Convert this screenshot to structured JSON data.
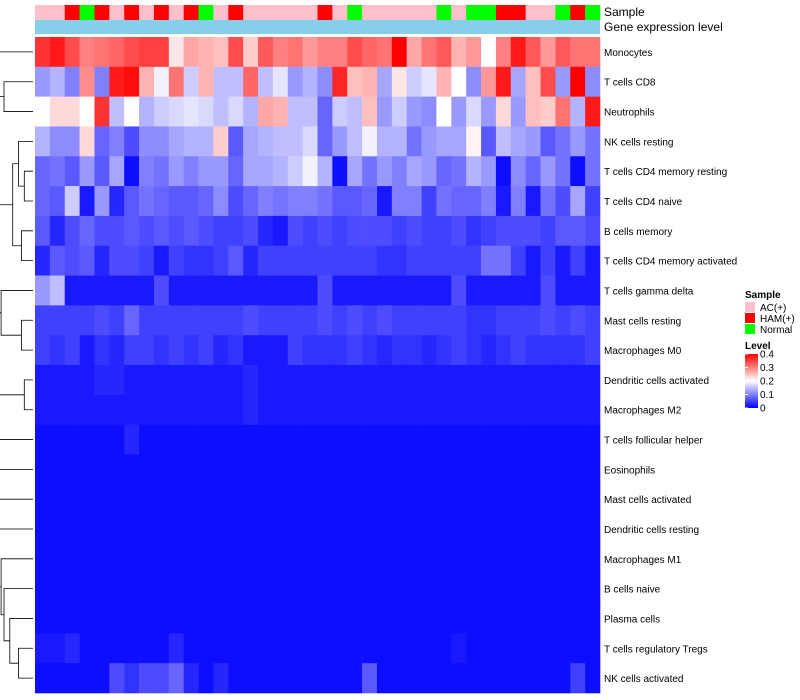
{
  "chart_data": {
    "type": "heatmap",
    "title": "",
    "annotation_labels": {
      "sample": "Sample",
      "gene_expression": "Gene expression level"
    },
    "sample_groups": [
      "AC(+)",
      "AC(+)",
      "HAM(+)",
      "Normal",
      "HAM(+)",
      "AC(+)",
      "HAM(+)",
      "AC(+)",
      "HAM(+)",
      "AC(+)",
      "HAM(+)",
      "Normal",
      "AC(+)",
      "HAM(+)",
      "AC(+)",
      "AC(+)",
      "AC(+)",
      "AC(+)",
      "AC(+)",
      "HAM(+)",
      "AC(+)",
      "Normal",
      "AC(+)",
      "AC(+)",
      "AC(+)",
      "AC(+)",
      "AC(+)",
      "Normal",
      "AC(+)",
      "Normal",
      "Normal",
      "HAM(+)",
      "HAM(+)",
      "AC(+)",
      "AC(+)",
      "Normal",
      "HAM(+)",
      "Normal"
    ],
    "group_colors": {
      "AC(+)": "#FFC0CB",
      "HAM(+)": "#FF0000",
      "Normal": "#00FF00"
    },
    "gene_expression_color": "#87CEEB",
    "rows": [
      {
        "label": "Monocytes",
        "values": [
          0.36,
          0.38,
          0.34,
          0.3,
          0.31,
          0.32,
          0.34,
          0.35,
          0.35,
          0.22,
          0.27,
          0.26,
          0.25,
          0.34,
          0.24,
          0.33,
          0.3,
          0.31,
          0.28,
          0.3,
          0.3,
          0.34,
          0.32,
          0.31,
          0.4,
          0.27,
          0.31,
          0.33,
          0.26,
          0.28,
          0.2,
          0.3,
          0.38,
          0.33,
          0.28,
          0.33,
          0.31,
          0.31
        ]
      },
      {
        "label": "T cells CD8",
        "values": [
          0.12,
          0.14,
          0.1,
          0.29,
          0.1,
          0.38,
          0.39,
          0.26,
          0.19,
          0.31,
          0.16,
          0.26,
          0.15,
          0.15,
          0.32,
          0.15,
          0.18,
          0.12,
          0.14,
          0.11,
          0.37,
          0.25,
          0.26,
          0.13,
          0.22,
          0.16,
          0.18,
          0.26,
          0.2,
          0.11,
          0.28,
          0.38,
          0.13,
          0.25,
          0.34,
          0.12,
          0.4,
          0.11
        ]
      },
      {
        "label": "Neutrophils",
        "values": [
          0.2,
          0.23,
          0.23,
          0.2,
          0.36,
          0.15,
          0.2,
          0.14,
          0.16,
          0.17,
          0.18,
          0.17,
          0.15,
          0.17,
          0.14,
          0.27,
          0.26,
          0.15,
          0.15,
          0.08,
          0.16,
          0.15,
          0.25,
          0.12,
          0.16,
          0.12,
          0.11,
          0.2,
          0.12,
          0.17,
          0.12,
          0.23,
          0.12,
          0.25,
          0.24,
          0.31,
          0.14,
          0.38
        ]
      },
      {
        "label": "NK cells resting",
        "values": [
          0.14,
          0.11,
          0.11,
          0.23,
          0.08,
          0.1,
          0.06,
          0.11,
          0.11,
          0.13,
          0.14,
          0.14,
          0.24,
          0.07,
          0.13,
          0.14,
          0.15,
          0.15,
          0.17,
          0.08,
          0.12,
          0.15,
          0.19,
          0.14,
          0.14,
          0.09,
          0.12,
          0.13,
          0.13,
          0.21,
          0.07,
          0.15,
          0.13,
          0.12,
          0.07,
          0.09,
          0.12,
          0.09
        ]
      },
      {
        "label": "T cells CD4 memory resting",
        "values": [
          0.08,
          0.09,
          0.07,
          0.12,
          0.07,
          0.13,
          0.01,
          0.1,
          0.09,
          0.12,
          0.1,
          0.12,
          0.12,
          0.08,
          0.13,
          0.13,
          0.14,
          0.16,
          0.19,
          0.14,
          0.01,
          0.13,
          0.09,
          0.12,
          0.1,
          0.13,
          0.12,
          0.08,
          0.09,
          0.14,
          0.12,
          0.01,
          0.11,
          0.08,
          0.12,
          0.09,
          0.01,
          0.09
        ]
      },
      {
        "label": "T cells CD4 naive",
        "values": [
          0.08,
          0.07,
          0.16,
          0.02,
          0.12,
          0.03,
          0.07,
          0.09,
          0.08,
          0.07,
          0.07,
          0.08,
          0.11,
          0.06,
          0.08,
          0.1,
          0.09,
          0.1,
          0.1,
          0.09,
          0.07,
          0.07,
          0.08,
          0.02,
          0.1,
          0.1,
          0.05,
          0.09,
          0.08,
          0.08,
          0.1,
          0.02,
          0.1,
          0.02,
          0.09,
          0.06,
          0.13,
          0.05
        ]
      },
      {
        "label": "B cells memory",
        "values": [
          0.07,
          0.03,
          0.06,
          0.08,
          0.06,
          0.06,
          0.07,
          0.06,
          0.07,
          0.06,
          0.07,
          0.06,
          0.05,
          0.05,
          0.06,
          0.03,
          0.02,
          0.06,
          0.05,
          0.06,
          0.05,
          0.06,
          0.06,
          0.06,
          0.05,
          0.06,
          0.05,
          0.05,
          0.06,
          0.04,
          0.05,
          0.06,
          0.06,
          0.06,
          0.05,
          0.07,
          0.07,
          0.06
        ]
      },
      {
        "label": "T cells CD4 memory activated",
        "values": [
          0.03,
          0.07,
          0.06,
          0.07,
          0.03,
          0.06,
          0.06,
          0.05,
          0.02,
          0.05,
          0.04,
          0.04,
          0.05,
          0.07,
          0.03,
          0.05,
          0.05,
          0.05,
          0.05,
          0.05,
          0.05,
          0.05,
          0.05,
          0.04,
          0.04,
          0.05,
          0.05,
          0.05,
          0.05,
          0.05,
          0.09,
          0.09,
          0.05,
          0.02,
          0.05,
          0.02,
          0.05,
          0.02
        ]
      },
      {
        "label": "T cells gamma delta",
        "values": [
          0.12,
          0.15,
          0.02,
          0.02,
          0.02,
          0.02,
          0.02,
          0.02,
          0.06,
          0.02,
          0.02,
          0.02,
          0.02,
          0.02,
          0.02,
          0.02,
          0.02,
          0.02,
          0.02,
          0.06,
          0.02,
          0.02,
          0.02,
          0.02,
          0.02,
          0.02,
          0.02,
          0.02,
          0.06,
          0.02,
          0.02,
          0.02,
          0.02,
          0.02,
          0.06,
          0.02,
          0.02,
          0.02
        ]
      },
      {
        "label": "Mast cells resting",
        "values": [
          0.05,
          0.05,
          0.05,
          0.05,
          0.06,
          0.05,
          0.08,
          0.05,
          0.05,
          0.05,
          0.05,
          0.05,
          0.05,
          0.05,
          0.06,
          0.05,
          0.05,
          0.05,
          0.05,
          0.06,
          0.05,
          0.06,
          0.05,
          0.06,
          0.05,
          0.05,
          0.05,
          0.05,
          0.05,
          0.04,
          0.04,
          0.05,
          0.05,
          0.05,
          0.06,
          0.05,
          0.06,
          0.05
        ]
      },
      {
        "label": "Macrophages M0",
        "values": [
          0.05,
          0.04,
          0.05,
          0.02,
          0.04,
          0.03,
          0.05,
          0.05,
          0.04,
          0.05,
          0.04,
          0.05,
          0.03,
          0.04,
          0.02,
          0.02,
          0.02,
          0.05,
          0.04,
          0.04,
          0.04,
          0.05,
          0.04,
          0.03,
          0.04,
          0.04,
          0.03,
          0.04,
          0.05,
          0.04,
          0.03,
          0.04,
          0.05,
          0.04,
          0.04,
          0.04,
          0.04,
          0.05
        ]
      },
      {
        "label": "Dendritic cells activated",
        "values": [
          0.02,
          0.02,
          0.02,
          0.02,
          0.03,
          0.03,
          0.02,
          0.02,
          0.02,
          0.02,
          0.02,
          0.02,
          0.02,
          0.02,
          0.03,
          0.02,
          0.02,
          0.02,
          0.02,
          0.02,
          0.02,
          0.02,
          0.02,
          0.02,
          0.02,
          0.02,
          0.02,
          0.02,
          0.02,
          0.02,
          0.02,
          0.02,
          0.02,
          0.02,
          0.02,
          0.02,
          0.02,
          0.02
        ]
      },
      {
        "label": "Macrophages M2",
        "values": [
          0.02,
          0.02,
          0.02,
          0.02,
          0.02,
          0.02,
          0.02,
          0.02,
          0.02,
          0.02,
          0.02,
          0.02,
          0.02,
          0.02,
          0.03,
          0.02,
          0.02,
          0.02,
          0.02,
          0.02,
          0.02,
          0.02,
          0.02,
          0.02,
          0.02,
          0.02,
          0.02,
          0.02,
          0.02,
          0.02,
          0.02,
          0.02,
          0.02,
          0.02,
          0.02,
          0.02,
          0.02,
          0.02
        ]
      },
      {
        "label": "T cells follicular helper",
        "values": [
          0.01,
          0.01,
          0.01,
          0.01,
          0.01,
          0.01,
          0.03,
          0.01,
          0.01,
          0.01,
          0.01,
          0.01,
          0.01,
          0.01,
          0.01,
          0.01,
          0.01,
          0.01,
          0.01,
          0.01,
          0.01,
          0.01,
          0.01,
          0.01,
          0.01,
          0.01,
          0.01,
          0.01,
          0.01,
          0.01,
          0.01,
          0.01,
          0.01,
          0.01,
          0.01,
          0.01,
          0.01,
          0.01
        ]
      },
      {
        "label": "Eosinophils",
        "values": [
          0.01,
          0.01,
          0.01,
          0.01,
          0.01,
          0.01,
          0.01,
          0.01,
          0.01,
          0.01,
          0.01,
          0.01,
          0.01,
          0.01,
          0.01,
          0.01,
          0.01,
          0.01,
          0.01,
          0.01,
          0.01,
          0.01,
          0.01,
          0.01,
          0.01,
          0.01,
          0.01,
          0.01,
          0.01,
          0.01,
          0.01,
          0.01,
          0.01,
          0.01,
          0.01,
          0.01,
          0.01,
          0.01
        ]
      },
      {
        "label": "Mast cells activated",
        "values": [
          0.01,
          0.01,
          0.01,
          0.01,
          0.01,
          0.01,
          0.01,
          0.01,
          0.01,
          0.01,
          0.01,
          0.01,
          0.01,
          0.01,
          0.01,
          0.01,
          0.01,
          0.01,
          0.01,
          0.01,
          0.01,
          0.01,
          0.01,
          0.01,
          0.01,
          0.01,
          0.01,
          0.01,
          0.01,
          0.01,
          0.01,
          0.01,
          0.01,
          0.01,
          0.01,
          0.01,
          0.01,
          0.01
        ]
      },
      {
        "label": "Dendritic cells resting",
        "values": [
          0.01,
          0.01,
          0.01,
          0.01,
          0.01,
          0.01,
          0.01,
          0.01,
          0.01,
          0.01,
          0.01,
          0.01,
          0.01,
          0.01,
          0.01,
          0.01,
          0.01,
          0.01,
          0.01,
          0.01,
          0.01,
          0.01,
          0.01,
          0.01,
          0.01,
          0.01,
          0.01,
          0.01,
          0.01,
          0.01,
          0.01,
          0.01,
          0.01,
          0.01,
          0.01,
          0.01,
          0.01,
          0.01
        ]
      },
      {
        "label": "Macrophages M1",
        "values": [
          0.01,
          0.01,
          0.01,
          0.01,
          0.01,
          0.01,
          0.01,
          0.01,
          0.01,
          0.01,
          0.01,
          0.01,
          0.01,
          0.01,
          0.01,
          0.01,
          0.01,
          0.01,
          0.01,
          0.01,
          0.01,
          0.01,
          0.01,
          0.01,
          0.01,
          0.01,
          0.01,
          0.01,
          0.01,
          0.01,
          0.01,
          0.01,
          0.01,
          0.01,
          0.01,
          0.01,
          0.01,
          0.01
        ]
      },
      {
        "label": "B cells naive",
        "values": [
          0.01,
          0.01,
          0.01,
          0.01,
          0.01,
          0.01,
          0.01,
          0.01,
          0.01,
          0.01,
          0.01,
          0.01,
          0.01,
          0.01,
          0.01,
          0.01,
          0.01,
          0.01,
          0.01,
          0.01,
          0.01,
          0.01,
          0.01,
          0.01,
          0.01,
          0.01,
          0.01,
          0.01,
          0.01,
          0.01,
          0.01,
          0.01,
          0.01,
          0.01,
          0.01,
          0.01,
          0.01,
          0.01
        ]
      },
      {
        "label": "Plasma cells",
        "values": [
          0.01,
          0.01,
          0.01,
          0.01,
          0.01,
          0.01,
          0.01,
          0.01,
          0.01,
          0.01,
          0.01,
          0.01,
          0.01,
          0.01,
          0.01,
          0.01,
          0.01,
          0.01,
          0.01,
          0.01,
          0.01,
          0.01,
          0.01,
          0.01,
          0.01,
          0.01,
          0.01,
          0.01,
          0.01,
          0.01,
          0.01,
          0.01,
          0.01,
          0.01,
          0.01,
          0.01,
          0.01,
          0.01
        ]
      },
      {
        "label": "T cells regulatory  Tregs",
        "values": [
          0.02,
          0.02,
          0.03,
          0.01,
          0.01,
          0.01,
          0.01,
          0.01,
          0.01,
          0.03,
          0.01,
          0.01,
          0.01,
          0.01,
          0.01,
          0.01,
          0.01,
          0.01,
          0.01,
          0.01,
          0.01,
          0.01,
          0.01,
          0.01,
          0.01,
          0.01,
          0.01,
          0.01,
          0.02,
          0.01,
          0.01,
          0.01,
          0.01,
          0.01,
          0.01,
          0.01,
          0.01,
          0.01
        ]
      },
      {
        "label": "NK cells activated",
        "values": [
          0.01,
          0.01,
          0.01,
          0.01,
          0.01,
          0.06,
          0.04,
          0.06,
          0.06,
          0.08,
          0.03,
          0.01,
          0.03,
          0.01,
          0.01,
          0.01,
          0.01,
          0.01,
          0.01,
          0.01,
          0.01,
          0.01,
          0.07,
          0.01,
          0.01,
          0.01,
          0.01,
          0.01,
          0.01,
          0.01,
          0.01,
          0.01,
          0.01,
          0.01,
          0.01,
          0.01,
          0.05,
          0.01
        ]
      }
    ],
    "legend": {
      "sample_title": "Sample",
      "level_title": "Level",
      "level_ticks": [
        0,
        0.1,
        0.2,
        0.3,
        0.4
      ],
      "level_tick_labels": [
        "0",
        "0.1",
        "0.2",
        "0.3",
        "0.4"
      ]
    },
    "color_scale": {
      "low": "#0000FF",
      "mid": "#FFFFFF",
      "high": "#FF0000",
      "range": [
        0,
        0.4
      ]
    },
    "dendrogram": {
      "heights": [
        10,
        8,
        3,
        2,
        4,
        2,
        4,
        7,
        3,
        5,
        3,
        2,
        1,
        1,
        1,
        1,
        1,
        1,
        1,
        1,
        1
      ]
    }
  }
}
